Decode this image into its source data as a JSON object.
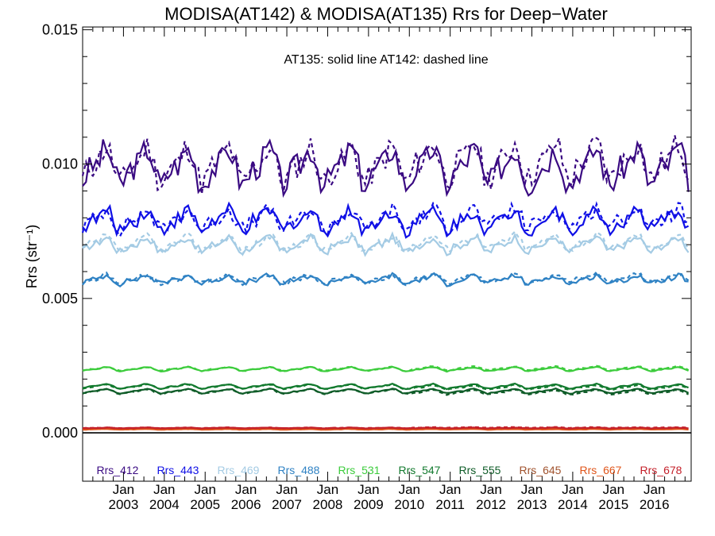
{
  "chart_data": {
    "type": "line",
    "title": "MODISA(AT142) & MODISA(AT135)  Rrs for Deep−Water",
    "annotation": "AT135: solid line   AT142: dashed line",
    "ylabel": "Rrs (str⁻¹)",
    "xlabel": "",
    "x_range": [
      2002.0,
      2016.9
    ],
    "ylim": [
      -0.0018,
      0.0151
    ],
    "y_ticks": [
      {
        "value": 0.0,
        "label": "0.000"
      },
      {
        "value": 0.005,
        "label": "0.005"
      },
      {
        "value": 0.01,
        "label": "0.010"
      },
      {
        "value": 0.015,
        "label": "0.015"
      }
    ],
    "x_ticks": [
      {
        "value": 2003,
        "month": "Jan",
        "year": "2003"
      },
      {
        "value": 2004,
        "month": "Jan",
        "year": "2004"
      },
      {
        "value": 2005,
        "month": "Jan",
        "year": "2005"
      },
      {
        "value": 2006,
        "month": "Jan",
        "year": "2006"
      },
      {
        "value": 2007,
        "month": "Jan",
        "year": "2007"
      },
      {
        "value": 2008,
        "month": "Jan",
        "year": "2008"
      },
      {
        "value": 2009,
        "month": "Jan",
        "year": "2009"
      },
      {
        "value": 2010,
        "month": "Jan",
        "year": "2010"
      },
      {
        "value": 2011,
        "month": "Jan",
        "year": "2011"
      },
      {
        "value": 2012,
        "month": "Jan",
        "year": "2012"
      },
      {
        "value": 2013,
        "month": "Jan",
        "year": "2013"
      },
      {
        "value": 2014,
        "month": "Jan",
        "year": "2014"
      },
      {
        "value": 2015,
        "month": "Jan",
        "year": "2015"
      },
      {
        "value": 2016,
        "month": "Jan",
        "year": "2016"
      }
    ],
    "grid": false,
    "legend_placement": "bottom",
    "series": [
      {
        "name": "Rrs_412",
        "color": "#3a0a82",
        "mean": 0.0099,
        "amp": 0.00055,
        "noise": 0.0005,
        "dash_offset": 0.0002
      },
      {
        "name": "Rrs_443",
        "color": "#1010e6",
        "mean": 0.0079,
        "amp": 0.0003,
        "noise": 0.00028,
        "dash_offset": 0.0001
      },
      {
        "name": "Rrs_469",
        "color": "#a4cbe4",
        "mean": 0.007,
        "amp": 0.00022,
        "noise": 0.00015,
        "dash_offset": 0.0001
      },
      {
        "name": "Rrs_488",
        "color": "#2f82c4",
        "mean": 0.0057,
        "amp": 0.00013,
        "noise": 0.0001,
        "dash_offset": 5e-05
      },
      {
        "name": "Rrs_531",
        "color": "#3ccc3c",
        "mean": 0.00237,
        "amp": 6e-05,
        "noise": 2e-05,
        "dash_offset": 3e-05
      },
      {
        "name": "Rrs_547",
        "color": "#127a2e",
        "mean": 0.00173,
        "amp": 7e-05,
        "noise": 2e-05,
        "dash_offset": -4e-05
      },
      {
        "name": "Rrs_555",
        "color": "#0f5c28",
        "mean": 0.00155,
        "amp": 7e-05,
        "noise": 2e-05,
        "dash_offset": -4e-05
      },
      {
        "name": "Rrs_645",
        "color": "#a0522d",
        "mean": 0.00015,
        "amp": 1e-05,
        "noise": 8e-06,
        "dash_offset": 2e-05
      },
      {
        "name": "Rrs_667",
        "color": "#e0551a",
        "mean": 0.00013,
        "amp": 1e-05,
        "noise": 8e-06,
        "dash_offset": 2e-05
      },
      {
        "name": "Rrs_678",
        "color": "#c4202a",
        "mean": 0.00018,
        "amp": 1e-05,
        "noise": 8e-06,
        "dash_offset": 2e-05
      }
    ]
  }
}
